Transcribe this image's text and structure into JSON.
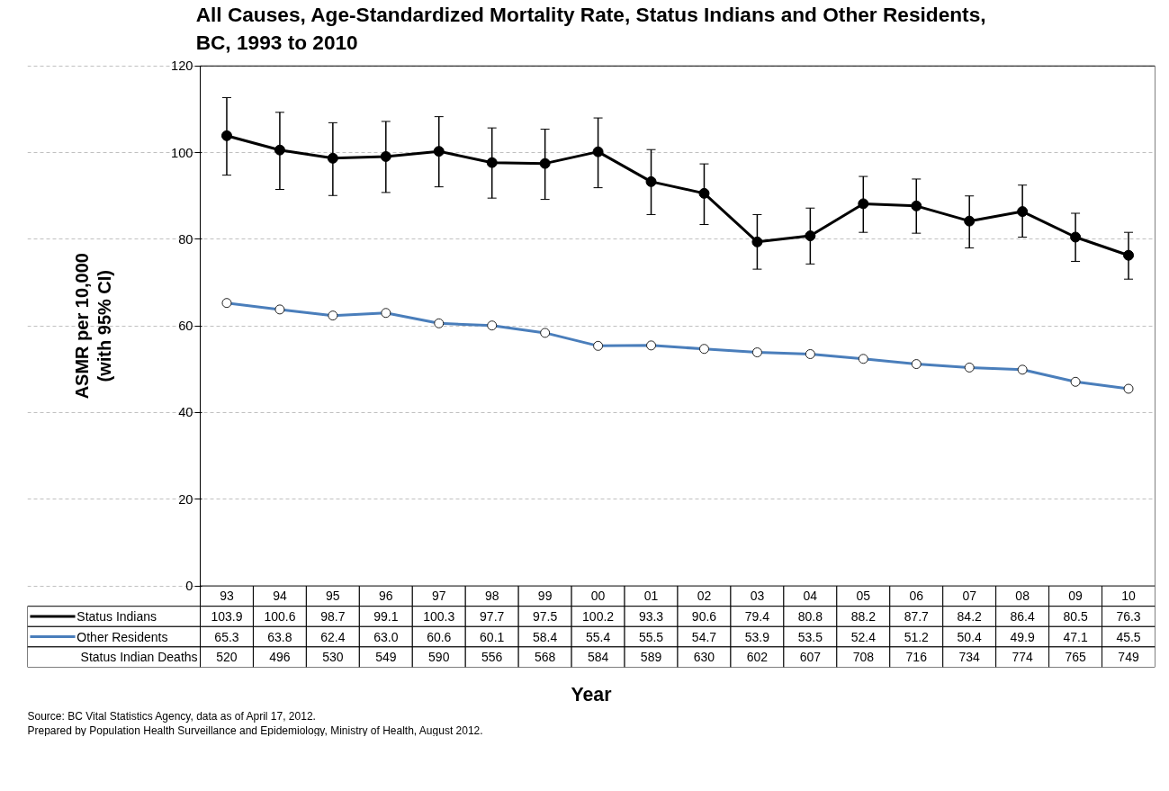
{
  "chart_data": {
    "type": "line",
    "title": "All Causes, Age-Standardized Mortality Rate, Status Indians and Other Residents,\nBC, 1993 to 2010",
    "xlabel": "Year",
    "ylabel": "ASMR per 10,000\n(with 95% CI)",
    "categories": [
      "93",
      "94",
      "95",
      "96",
      "97",
      "98",
      "99",
      "00",
      "01",
      "02",
      "03",
      "04",
      "05",
      "06",
      "07",
      "08",
      "09",
      "10"
    ],
    "series": [
      {
        "name": "Status Indians",
        "color": "#000000",
        "values": [
          103.9,
          100.6,
          98.7,
          99.1,
          100.3,
          97.7,
          97.5,
          100.2,
          93.3,
          90.6,
          79.4,
          80.8,
          88.2,
          87.7,
          84.2,
          86.4,
          80.5,
          76.3
        ],
        "errors": [
          [
            94.8,
            112.7
          ],
          [
            91.5,
            109.3
          ],
          [
            90.1,
            106.9
          ],
          [
            90.8,
            107.2
          ],
          [
            92.1,
            108.3
          ],
          [
            89.5,
            105.7
          ],
          [
            89.2,
            105.4
          ],
          [
            91.9,
            108.0
          ],
          [
            85.7,
            100.7
          ],
          [
            83.4,
            97.4
          ],
          [
            73.1,
            85.7
          ],
          [
            74.3,
            87.2
          ],
          [
            81.6,
            94.5
          ],
          [
            81.4,
            93.9
          ],
          [
            78.0,
            90.0
          ],
          [
            80.5,
            92.5
          ],
          [
            74.9,
            86.0
          ],
          [
            70.8,
            81.6
          ]
        ]
      },
      {
        "name": "Other Residents",
        "color": "#4a7ebb",
        "values": [
          65.3,
          63.8,
          62.4,
          63.0,
          60.6,
          60.1,
          58.4,
          55.4,
          55.5,
          54.7,
          53.9,
          53.5,
          52.4,
          51.2,
          50.4,
          49.9,
          47.1,
          45.5
        ],
        "value_labels": [
          "65.3",
          "63.8",
          "62.4",
          "63.0",
          "60.6",
          "60.1",
          "58.4",
          "55.4",
          "55.5",
          "54.7",
          "53.9",
          "53.5",
          "52.4",
          "51.2",
          "50.4",
          "49.9",
          "47.1",
          "45.5"
        ]
      }
    ],
    "ylim": [
      0,
      120
    ],
    "yticks": [
      0,
      20,
      40,
      60,
      80,
      100,
      120
    ],
    "grid": "y",
    "marker": "circle",
    "line_style": "solid",
    "legend": "bottom",
    "data_labels": true,
    "annotations": [
      "Status Indian Deaths",
      "520",
      "496",
      "530",
      "549",
      "590",
      "556",
      "568",
      "584",
      "589",
      "630",
      "602",
      "607",
      "708",
      "716",
      "734",
      "774",
      "765",
      "749",
      "Source:  BC Vital Statistics Agency, data as of April 17, 2012.",
      "Prepared by Population Health Surveillance and Epidemiology, Ministry of Health, August 2012."
    ]
  }
}
